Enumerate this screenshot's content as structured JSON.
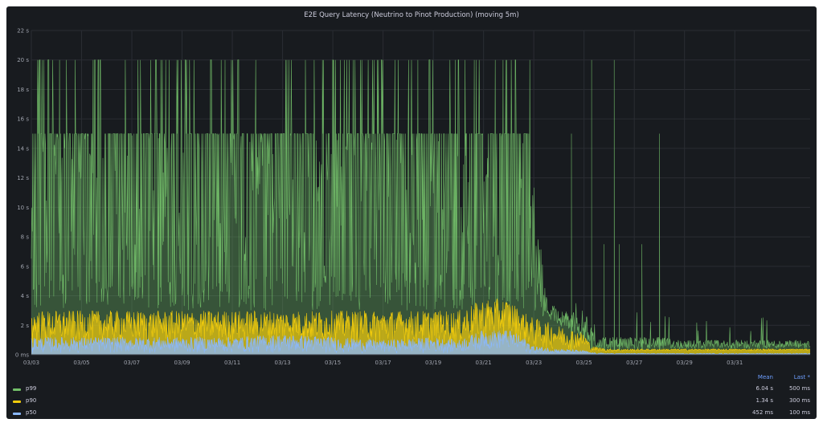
{
  "panel": {
    "title": "E2E Query Latency (Neutrino to Pinot Production) (moving 5m)"
  },
  "chart_data": {
    "type": "line",
    "title": "E2E Query Latency (Neutrino to Pinot Production) (moving 5m)",
    "y_unit": "seconds",
    "ylim": [
      0,
      22
    ],
    "y_ticks": [
      0,
      2,
      4,
      6,
      8,
      10,
      12,
      14,
      16,
      18,
      20,
      22
    ],
    "y_tick_labels": [
      "0 ms",
      "2 s",
      "4 s",
      "6 s",
      "8 s",
      "10 s",
      "12 s",
      "14 s",
      "16 s",
      "18 s",
      "20 s",
      "22 s"
    ],
    "x_unit": "day of March",
    "xlim": [
      3,
      34
    ],
    "x_ticks": [
      3,
      5,
      7,
      9,
      11,
      13,
      15,
      17,
      19,
      21,
      23,
      25,
      27,
      29,
      31
    ],
    "x_tick_labels": [
      "03/03",
      "03/05",
      "03/07",
      "03/09",
      "03/11",
      "03/13",
      "03/15",
      "03/17",
      "03/19",
      "03/21",
      "03/23",
      "03/25",
      "03/27",
      "03/29",
      "03/31"
    ],
    "grid": true,
    "legend": "bottom",
    "series": [
      {
        "name": "p99",
        "color": "#73bf69",
        "mean": "6.04 s",
        "last": "500 ms",
        "envelope": {
          "x": [
            3,
            4,
            5,
            6,
            7,
            8,
            9,
            10,
            11,
            12,
            13,
            14,
            15,
            16,
            17,
            18,
            19,
            20,
            21,
            22,
            22.8,
            23.5,
            24,
            24.5,
            25,
            25.5,
            26,
            27,
            28,
            29,
            30,
            31,
            32,
            33,
            34
          ],
          "baseline": [
            3,
            3,
            3,
            3,
            3,
            3,
            3,
            3,
            3,
            3,
            3,
            3,
            3,
            3,
            3,
            3,
            3,
            3,
            3,
            3,
            3,
            2.5,
            2,
            1.5,
            1,
            0.4,
            0.4,
            0.4,
            0.4,
            0.4,
            0.4,
            0.4,
            0.4,
            0.4,
            0.4
          ],
          "typical_max": [
            15,
            15,
            15,
            15,
            15,
            15,
            15,
            15,
            15,
            15,
            15,
            15,
            15,
            15,
            15,
            15,
            15,
            15,
            15,
            15,
            15,
            4,
            3,
            3,
            3,
            1.2,
            1.2,
            1.2,
            1.2,
            1.0,
            1.0,
            1.0,
            1.0,
            1.0,
            1.0
          ],
          "spike_max": 20
        },
        "spikes": [
          {
            "x": 24.5,
            "y": 15
          },
          {
            "x": 25.3,
            "y": 20
          },
          {
            "x": 25.8,
            "y": 7.5
          },
          {
            "x": 26.2,
            "y": 20
          },
          {
            "x": 26.4,
            "y": 7.5
          },
          {
            "x": 27.3,
            "y": 7.5
          },
          {
            "x": 28.0,
            "y": 15
          }
        ]
      },
      {
        "name": "p90",
        "color": "#f2cc0c",
        "mean": "1.34 s",
        "last": "300 ms",
        "envelope": {
          "x": [
            3,
            5,
            7,
            9,
            11,
            13,
            15,
            17,
            19,
            20,
            21,
            22,
            22.5,
            23,
            24,
            25,
            25.3,
            26,
            28,
            30,
            32,
            34
          ],
          "low": [
            0.5,
            0.7,
            0.7,
            0.7,
            0.7,
            0.8,
            0.7,
            0.6,
            0.7,
            0.5,
            0.9,
            1.0,
            0.8,
            0.3,
            0.3,
            0.3,
            0.2,
            0.2,
            0.25,
            0.25,
            0.25,
            0.3
          ],
          "high": [
            3.0,
            3.0,
            3.0,
            3.0,
            3.0,
            3.0,
            3.0,
            3.0,
            3.0,
            3.0,
            3.8,
            3.8,
            3.0,
            2.5,
            2.0,
            1.5,
            0.6,
            0.4,
            0.4,
            0.4,
            0.4,
            0.4
          ]
        }
      },
      {
        "name": "p50",
        "color": "#8ab8ff",
        "mean": "452 ms",
        "last": "100 ms",
        "envelope": {
          "x": [
            3,
            5,
            7,
            9,
            11,
            13,
            15,
            17,
            19,
            20,
            21,
            22,
            22.5,
            23,
            24,
            25,
            25.3,
            26,
            28,
            30,
            32,
            34
          ],
          "low": [
            0.1,
            0.1,
            0.1,
            0.1,
            0.1,
            0.1,
            0.1,
            0.1,
            0.1,
            0.1,
            0.3,
            0.3,
            0.1,
            0.05,
            0.05,
            0.05,
            0.03,
            0.03,
            0.03,
            0.03,
            0.03,
            0.03
          ],
          "high": [
            1.2,
            1.2,
            1.2,
            1.2,
            1.2,
            1.4,
            1.2,
            1.0,
            1.2,
            1.0,
            1.7,
            1.7,
            1.3,
            0.6,
            0.4,
            0.3,
            0.15,
            0.1,
            0.1,
            0.1,
            0.1,
            0.1
          ]
        }
      }
    ]
  },
  "legend": {
    "header_mean": "Mean",
    "header_last": "Last *",
    "rows": [
      {
        "name": "p99",
        "color": "#73bf69",
        "mean": "6.04 s",
        "last": "500 ms"
      },
      {
        "name": "p90",
        "color": "#f2cc0c",
        "mean": "1.34 s",
        "last": "300 ms"
      },
      {
        "name": "p50",
        "color": "#8ab8ff",
        "mean": "452 ms",
        "last": "100 ms"
      }
    ]
  }
}
